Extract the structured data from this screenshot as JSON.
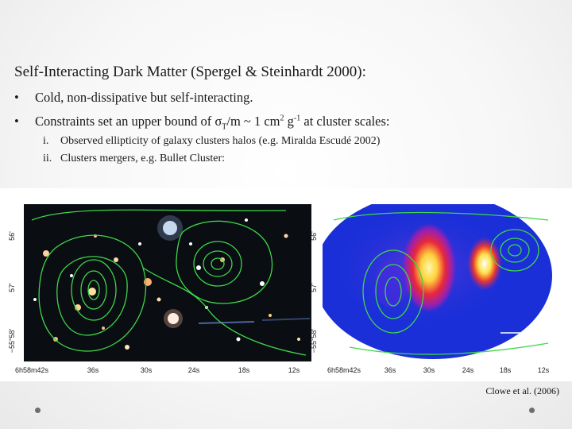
{
  "slide": {
    "title": "Self-Interacting Dark Matter (Spergel & Steinhardt 2000):",
    "bullet_marker": "•",
    "bullets": [
      {
        "text": "Cold, non-dissipative but self-interacting."
      },
      {
        "pre": "Constraints set an upper bound of  σ",
        "sub": "T",
        "mid": "/m ~ 1 cm",
        "sup1": "2",
        "mid2": " g",
        "sup2": "-1",
        "post": "  at cluster scales:"
      }
    ],
    "subitems": [
      {
        "num": "i.",
        "text": "Observed ellipticity of galaxy clusters halos (e.g. Miralda Escudé 2002)"
      },
      {
        "num": "ii.",
        "text": "Clusters mergers, e.g. Bullet Cluster:"
      }
    ],
    "credit": "Clowe et al. (2006)"
  },
  "figure": {
    "y_ticks": [
      "56'",
      "57'",
      "−55°58'"
    ],
    "x_ticks": [
      "6h58m42s",
      "36s",
      "30s",
      "24s",
      "18s",
      "12s"
    ],
    "colors": {
      "optical_bg": "#0a0d12",
      "contour": "#3fd64a",
      "xray_bg": "#1a2fd8",
      "xray_hot": "#ffec5a",
      "xray_mid": "#e8283a"
    }
  }
}
